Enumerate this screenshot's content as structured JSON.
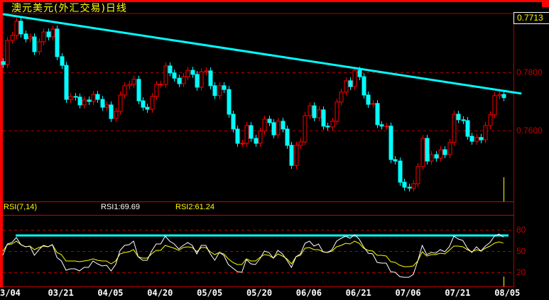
{
  "header": {
    "title": "澳元美元(外汇交易)日线",
    "last_price": "0.7713"
  },
  "rsi_header": {
    "name": "RSI(7,14)",
    "rsi1": "RSI1:69.69",
    "rsi2": "RSI2:61.24"
  },
  "colors": {
    "up": "#ff0000",
    "down": "#00ffff",
    "trendline": "#00ffff",
    "grid": "#b00000",
    "rsi1": "#ffffff",
    "rsi2": "#ffff00",
    "cursor": "#ffff00"
  },
  "chart_data": [
    {
      "type": "candlestick",
      "title": "澳元美元(外汇交易)日线",
      "ylim": [
        0.7356,
        0.8005
      ],
      "y_ticks": [
        "0.7800",
        "0.7600"
      ],
      "y_tick_values": [
        0.78,
        0.76
      ],
      "x_ticks": [
        "3/04",
        "03/21",
        "04/05",
        "04/20",
        "05/05",
        "05/20",
        "06/06",
        "06/21",
        "07/06",
        "07/21",
        "08/05"
      ],
      "x_tick_index": [
        1,
        13,
        24,
        35,
        46,
        57,
        68,
        79,
        90,
        101,
        112
      ],
      "grid": "dashed horizontal",
      "ohlc": [
        [
          0.7837,
          0.7849,
          0.7815,
          0.7827
        ],
        [
          0.7827,
          0.7922,
          0.7815,
          0.791
        ],
        [
          0.791,
          0.7939,
          0.7898,
          0.7927
        ],
        [
          0.7927,
          0.7988,
          0.7915,
          0.7976
        ],
        [
          0.7976,
          0.7988,
          0.792,
          0.7932
        ],
        [
          0.7932,
          0.7944,
          0.7903,
          0.7915
        ],
        [
          0.7915,
          0.7934,
          0.7903,
          0.7922
        ],
        [
          0.7922,
          0.7934,
          0.7859,
          0.7871
        ],
        [
          0.7871,
          0.7917,
          0.7859,
          0.7905
        ],
        [
          0.7905,
          0.7951,
          0.7893,
          0.7939
        ],
        [
          0.7939,
          0.7951,
          0.791,
          0.7922
        ],
        [
          0.7922,
          0.7961,
          0.791,
          0.7949
        ],
        [
          0.7949,
          0.7961,
          0.7842,
          0.7854
        ],
        [
          0.7854,
          0.7866,
          0.7812,
          0.7824
        ],
        [
          0.7824,
          0.7836,
          0.7695,
          0.7707
        ],
        [
          0.7707,
          0.7729,
          0.7695,
          0.7717
        ],
        [
          0.7717,
          0.7729,
          0.7703,
          0.7715
        ],
        [
          0.7715,
          0.7727,
          0.7676,
          0.7688
        ],
        [
          0.7688,
          0.7717,
          0.7676,
          0.7705
        ],
        [
          0.7705,
          0.7717,
          0.7688,
          0.77
        ],
        [
          0.77,
          0.7736,
          0.7688,
          0.7724
        ],
        [
          0.7724,
          0.7736,
          0.7695,
          0.7707
        ],
        [
          0.7707,
          0.7719,
          0.7668,
          0.768
        ],
        [
          0.768,
          0.77,
          0.7668,
          0.7688
        ],
        [
          0.7688,
          0.77,
          0.7629,
          0.7641
        ],
        [
          0.7641,
          0.7678,
          0.7629,
          0.7666
        ],
        [
          0.7666,
          0.7734,
          0.7654,
          0.7722
        ],
        [
          0.7722,
          0.7766,
          0.771,
          0.7754
        ],
        [
          0.7754,
          0.7771,
          0.7742,
          0.7759
        ],
        [
          0.7759,
          0.7788,
          0.7747,
          0.7776
        ],
        [
          0.7776,
          0.7788,
          0.769,
          0.7702
        ],
        [
          0.7702,
          0.7714,
          0.7668,
          0.768
        ],
        [
          0.768,
          0.7692,
          0.7661,
          0.7673
        ],
        [
          0.7673,
          0.7729,
          0.7661,
          0.7717
        ],
        [
          0.7717,
          0.7771,
          0.7705,
          0.7759
        ],
        [
          0.7759,
          0.7771,
          0.7747,
          0.7759
        ],
        [
          0.7759,
          0.7834,
          0.7747,
          0.7822
        ],
        [
          0.7822,
          0.7834,
          0.7786,
          0.7798
        ],
        [
          0.7798,
          0.781,
          0.7768,
          0.778
        ],
        [
          0.778,
          0.7792,
          0.7749,
          0.7761
        ],
        [
          0.7761,
          0.7797,
          0.7749,
          0.7785
        ],
        [
          0.7785,
          0.7819,
          0.7773,
          0.7807
        ],
        [
          0.7807,
          0.7819,
          0.7781,
          0.7793
        ],
        [
          0.7793,
          0.7805,
          0.7737,
          0.7749
        ],
        [
          0.7749,
          0.7814,
          0.7737,
          0.7802
        ],
        [
          0.7802,
          0.7817,
          0.779,
          0.7805
        ],
        [
          0.7805,
          0.7817,
          0.7742,
          0.7754
        ],
        [
          0.7754,
          0.7766,
          0.7708,
          0.772
        ],
        [
          0.772,
          0.7766,
          0.7708,
          0.7754
        ],
        [
          0.7754,
          0.7766,
          0.7729,
          0.7741
        ],
        [
          0.7741,
          0.7753,
          0.7644,
          0.7656
        ],
        [
          0.7656,
          0.7668,
          0.7593,
          0.7605
        ],
        [
          0.7605,
          0.7617,
          0.7544,
          0.7556
        ],
        [
          0.7556,
          0.7568,
          0.7544,
          0.7556
        ],
        [
          0.7556,
          0.7629,
          0.7544,
          0.7617
        ],
        [
          0.7617,
          0.7629,
          0.7561,
          0.7573
        ],
        [
          0.7573,
          0.7585,
          0.7544,
          0.7556
        ],
        [
          0.7556,
          0.761,
          0.7544,
          0.7598
        ],
        [
          0.7598,
          0.7651,
          0.7586,
          0.7639
        ],
        [
          0.7639,
          0.7651,
          0.7615,
          0.7627
        ],
        [
          0.7627,
          0.7639,
          0.7573,
          0.7585
        ],
        [
          0.7585,
          0.7644,
          0.7573,
          0.7632
        ],
        [
          0.7632,
          0.7644,
          0.7593,
          0.7605
        ],
        [
          0.7605,
          0.7617,
          0.7537,
          0.7549
        ],
        [
          0.7549,
          0.7561,
          0.7468,
          0.748
        ],
        [
          0.748,
          0.7561,
          0.7468,
          0.7549
        ],
        [
          0.7549,
          0.7573,
          0.7537,
          0.7561
        ],
        [
          0.7561,
          0.7663,
          0.7549,
          0.7651
        ],
        [
          0.7651,
          0.7697,
          0.7639,
          0.7685
        ],
        [
          0.7685,
          0.7697,
          0.7632,
          0.7644
        ],
        [
          0.7644,
          0.7683,
          0.7632,
          0.7671
        ],
        [
          0.7671,
          0.7683,
          0.7603,
          0.7615
        ],
        [
          0.7615,
          0.7627,
          0.76,
          0.7612
        ],
        [
          0.7612,
          0.7644,
          0.76,
          0.7632
        ],
        [
          0.7632,
          0.771,
          0.762,
          0.7698
        ],
        [
          0.7698,
          0.7744,
          0.7686,
          0.7732
        ],
        [
          0.7732,
          0.7783,
          0.772,
          0.7771
        ],
        [
          0.7771,
          0.7783,
          0.7739,
          0.7751
        ],
        [
          0.7751,
          0.7819,
          0.7739,
          0.7807
        ],
        [
          0.7807,
          0.7819,
          0.7773,
          0.7785
        ],
        [
          0.7785,
          0.7797,
          0.771,
          0.7722
        ],
        [
          0.7722,
          0.7734,
          0.7678,
          0.769
        ],
        [
          0.769,
          0.7705,
          0.7678,
          0.7693
        ],
        [
          0.7693,
          0.7705,
          0.7608,
          0.762
        ],
        [
          0.762,
          0.7632,
          0.7603,
          0.7615
        ],
        [
          0.7615,
          0.7627,
          0.7603,
          0.7615
        ],
        [
          0.7615,
          0.7627,
          0.7488,
          0.75
        ],
        [
          0.75,
          0.7512,
          0.7483,
          0.7495
        ],
        [
          0.7495,
          0.7507,
          0.741,
          0.7422
        ],
        [
          0.7422,
          0.7434,
          0.7393,
          0.7405
        ],
        [
          0.7405,
          0.7417,
          0.739,
          0.7402
        ],
        [
          0.7402,
          0.7429,
          0.739,
          0.7417
        ],
        [
          0.7417,
          0.7488,
          0.7405,
          0.7476
        ],
        [
          0.7476,
          0.7585,
          0.7464,
          0.7573
        ],
        [
          0.7573,
          0.7585,
          0.7483,
          0.7495
        ],
        [
          0.7495,
          0.7529,
          0.7483,
          0.7517
        ],
        [
          0.7517,
          0.7529,
          0.7493,
          0.7505
        ],
        [
          0.7505,
          0.7546,
          0.7493,
          0.7534
        ],
        [
          0.7534,
          0.7546,
          0.7505,
          0.7517
        ],
        [
          0.7517,
          0.7571,
          0.7505,
          0.7559
        ],
        [
          0.7559,
          0.7668,
          0.7547,
          0.7656
        ],
        [
          0.7656,
          0.7668,
          0.7625,
          0.7637
        ],
        [
          0.7637,
          0.7649,
          0.7622,
          0.7634
        ],
        [
          0.7634,
          0.7646,
          0.7568,
          0.758
        ],
        [
          0.758,
          0.7592,
          0.7551,
          0.7563
        ],
        [
          0.7563,
          0.7588,
          0.7551,
          0.7576
        ],
        [
          0.7576,
          0.7588,
          0.7556,
          0.7568
        ],
        [
          0.7568,
          0.7629,
          0.7556,
          0.7617
        ],
        [
          0.7617,
          0.7666,
          0.7605,
          0.7654
        ],
        [
          0.7654,
          0.7732,
          0.7642,
          0.772
        ],
        [
          0.772,
          0.7736,
          0.7708,
          0.7724
        ],
        [
          0.7724,
          0.7736,
          0.7701,
          0.7713
        ]
      ],
      "trendline": [
        [
          0,
          0.8
        ],
        [
          115,
          0.7727
        ]
      ],
      "cursor_index": 111
    },
    {
      "type": "line",
      "title": "RSI(7,14)",
      "ylim": [
        0,
        90
      ],
      "y_ticks": [
        "80",
        "50",
        "20"
      ],
      "y_tick_values": [
        80,
        50,
        20
      ],
      "reference_line": 72,
      "series": [
        {
          "name": "RSI1",
          "values": [
            44,
            60,
            62,
            69,
            59,
            56,
            57,
            44,
            52,
            58,
            56,
            59,
            41,
            36,
            23,
            25,
            25,
            22,
            27,
            27,
            36,
            32,
            29,
            30,
            22,
            31,
            51,
            58,
            59,
            64,
            42,
            37,
            37,
            50,
            60,
            60,
            71,
            64,
            60,
            53,
            58,
            62,
            58,
            46,
            58,
            58,
            46,
            37,
            48,
            44,
            31,
            26,
            21,
            20,
            38,
            32,
            31,
            39,
            50,
            48,
            40,
            51,
            46,
            37,
            27,
            42,
            46,
            61,
            64,
            57,
            60,
            49,
            48,
            52,
            64,
            68,
            71,
            68,
            73,
            67,
            56,
            47,
            46,
            34,
            33,
            33,
            21,
            20,
            14,
            13,
            13,
            17,
            36,
            58,
            45,
            48,
            47,
            52,
            49,
            56,
            71,
            67,
            65,
            54,
            48,
            56,
            50,
            57,
            62,
            71,
            74,
            69.69
          ]
        },
        {
          "name": "RSI2",
          "values": [
            50,
            59,
            60,
            64,
            59,
            56,
            57,
            52,
            55,
            57,
            56,
            59,
            48,
            45,
            36,
            36,
            36,
            35,
            36,
            37,
            39,
            37,
            36,
            36,
            32,
            36,
            46,
            48,
            49,
            52,
            42,
            40,
            40,
            46,
            51,
            51,
            58,
            56,
            54,
            51,
            55,
            56,
            55,
            49,
            55,
            55,
            49,
            45,
            48,
            46,
            39,
            34,
            31,
            31,
            39,
            36,
            36,
            41,
            45,
            44,
            40,
            46,
            43,
            39,
            32,
            42,
            44,
            54,
            55,
            52,
            52,
            49,
            48,
            50,
            56,
            58,
            61,
            60,
            64,
            61,
            54,
            51,
            50,
            44,
            44,
            43,
            35,
            34,
            30,
            28,
            28,
            29,
            36,
            49,
            43,
            45,
            45,
            47,
            46,
            51,
            57,
            57,
            56,
            52,
            49,
            52,
            50,
            54,
            57,
            61,
            63,
            61.24
          ]
        }
      ]
    }
  ]
}
